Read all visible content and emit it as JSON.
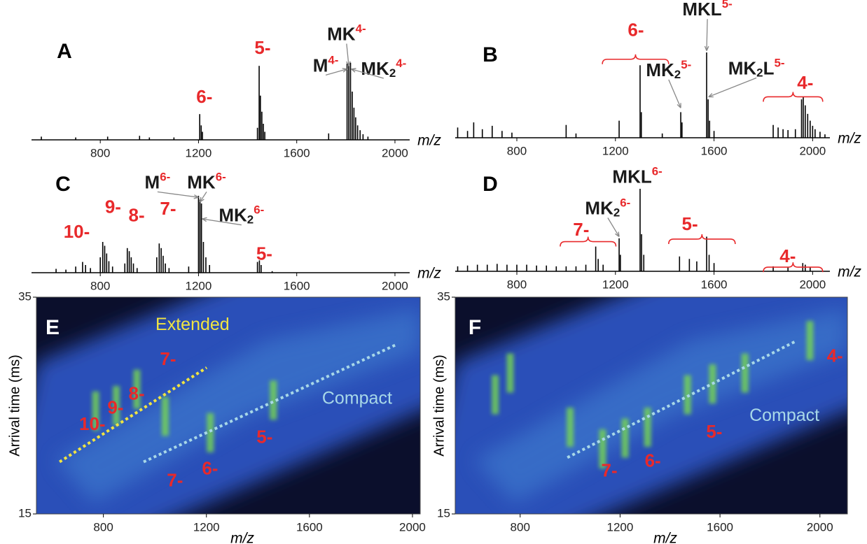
{
  "chart_data": [
    {
      "type": "bar",
      "title": "A",
      "color": "#000000",
      "charge_color": "#e8292b",
      "label_color": "#1a1a1a",
      "xlabel": "m/z",
      "xlim": [
        520,
        2060
      ],
      "ylim": [
        0,
        100
      ],
      "xticks": [
        800,
        1200,
        1600,
        2000
      ],
      "x": [
        560,
        700,
        830,
        960,
        1000,
        1100,
        1205,
        1211,
        1216,
        1440,
        1447,
        1452,
        1458,
        1464,
        1470,
        1730,
        1805,
        1812,
        1819,
        1826,
        1833,
        1840,
        1848,
        1858,
        1870,
        1890
      ],
      "values": [
        4,
        3,
        4,
        5,
        3,
        3,
        32,
        18,
        10,
        15,
        92,
        55,
        35,
        20,
        10,
        8,
        95,
        92,
        96,
        60,
        40,
        28,
        18,
        12,
        7,
        4
      ],
      "annotations": [
        {
          "text": "6-",
          "x": 1224,
          "y": 52
        },
        {
          "text": "5-",
          "x": 1461,
          "y": 113
        },
        {
          "text": "M",
          "sup": "4-",
          "x": 1718,
          "y": 91,
          "arrow": [
            1805,
            88
          ]
        },
        {
          "text": "MK",
          "sup": "4-",
          "x": 1803,
          "y": 130,
          "arrow": [
            1812,
            92
          ]
        },
        {
          "text": "MK",
          "sub": "2",
          "sup": "4-",
          "x": 1954,
          "y": 87,
          "arrow": [
            1822,
            88
          ]
        }
      ]
    },
    {
      "type": "bar",
      "title": "B",
      "color": "#000000",
      "charge_color": "#e8292b",
      "label_color": "#1a1a1a",
      "xlabel": "m/z",
      "xlim": [
        550,
        2070
      ],
      "ylim": [
        0,
        100
      ],
      "xticks": [
        800,
        1200,
        1600,
        2000
      ],
      "x": [
        560,
        600,
        625,
        660,
        700,
        740,
        780,
        1000,
        1040,
        1215,
        1300,
        1305,
        1390,
        1465,
        1470,
        1570,
        1576,
        1582,
        1600,
        1840,
        1860,
        1880,
        1900,
        1930,
        1955,
        1962,
        1970,
        1980,
        1990,
        2000,
        2010,
        2030,
        2050
      ],
      "values": [
        12,
        8,
        18,
        10,
        14,
        8,
        6,
        15,
        5,
        20,
        85,
        30,
        5,
        30,
        18,
        100,
        45,
        20,
        8,
        15,
        12,
        10,
        9,
        10,
        45,
        48,
        38,
        28,
        20,
        14,
        10,
        7,
        4
      ],
      "annotations": [
        {
          "text": "6-",
          "x": 1283,
          "y": 125
        },
        {
          "text": "MKL",
          "sup": "5-",
          "x": 1573,
          "y": 149,
          "arrow": [
            1570,
            102
          ]
        },
        {
          "text": "MK",
          "sub": "2",
          "sup": "5-",
          "x": 1416,
          "y": 78,
          "arrow": [
            1465,
            35
          ]
        },
        {
          "text": "MK",
          "sub": "2",
          "text2": "L",
          "sup": "5-",
          "x": 1772,
          "y": 80,
          "arrow": [
            1578,
            48
          ]
        },
        {
          "text": "4-",
          "x": 1970,
          "y": 63
        }
      ],
      "braces": [
        {
          "x": [
            1147,
            1416
          ],
          "y": 92
        },
        {
          "x": [
            1800,
            2041
          ],
          "y": 48
        }
      ]
    },
    {
      "type": "bar",
      "title": "C",
      "color": "#000000",
      "charge_color": "#e8292b",
      "label_color": "#1a1a1a",
      "xlabel": "m/z",
      "xlim": [
        520,
        2060
      ],
      "ylim": [
        0,
        100
      ],
      "xticks": [
        800,
        1200,
        1600,
        2000
      ],
      "x": [
        620,
        660,
        700,
        728,
        740,
        760,
        800,
        810,
        818,
        826,
        835,
        850,
        900,
        910,
        918,
        926,
        935,
        950,
        1030,
        1040,
        1048,
        1056,
        1065,
        1080,
        1160,
        1200,
        1206,
        1212,
        1220,
        1230,
        1245,
        1440,
        1448,
        1455,
        1500
      ],
      "values": [
        5,
        4,
        8,
        14,
        10,
        6,
        20,
        40,
        35,
        25,
        15,
        8,
        12,
        32,
        28,
        20,
        12,
        6,
        20,
        38,
        32,
        22,
        12,
        6,
        8,
        100,
        95,
        90,
        40,
        20,
        10,
        14,
        16,
        10,
        2
      ],
      "annotations": [
        {
          "text": "10-",
          "x": 704,
          "y": 52
        },
        {
          "text": "9-",
          "x": 852,
          "y": 84
        },
        {
          "text": "8-",
          "x": 948,
          "y": 73
        },
        {
          "text": "7-",
          "x": 1076,
          "y": 82
        },
        {
          "text": "M",
          "sup": "6-",
          "x": 1033,
          "y": 116,
          "arrow": [
            1200,
            98
          ]
        },
        {
          "text": "MK",
          "sup": "6-",
          "x": 1233,
          "y": 116,
          "arrow": [
            1206,
            92
          ]
        },
        {
          "text": "MK",
          "sub": "2",
          "sup": "6-",
          "x": 1375,
          "y": 73,
          "arrow": [
            1215,
            70
          ]
        },
        {
          "text": "5-",
          "x": 1468,
          "y": 23
        }
      ]
    },
    {
      "type": "bar",
      "title": "D",
      "color": "#000000",
      "charge_color": "#e8292b",
      "label_color": "#1a1a1a",
      "xlabel": "m/z",
      "xlim": [
        550,
        2070
      ],
      "ylim": [
        0,
        100
      ],
      "xticks": [
        800,
        1200,
        1600,
        2000
      ],
      "x": [
        560,
        600,
        640,
        680,
        720,
        760,
        800,
        840,
        880,
        920,
        960,
        1000,
        1040,
        1080,
        1120,
        1130,
        1150,
        1215,
        1220,
        1300,
        1306,
        1315,
        1460,
        1500,
        1530,
        1570,
        1580,
        1600,
        1840,
        1900,
        1960,
        1970,
        1990
      ],
      "values": [
        6,
        7,
        8,
        8,
        9,
        8,
        8,
        8,
        7,
        7,
        6,
        6,
        6,
        8,
        30,
        15,
        8,
        40,
        20,
        100,
        45,
        20,
        18,
        15,
        12,
        42,
        20,
        10,
        6,
        5,
        10,
        8,
        5
      ],
      "annotations": [
        {
          "text": "MKL",
          "sup": "6-",
          "x": 1289,
          "y": 113
        },
        {
          "text": "MK",
          "sub": "2",
          "sup": "6-",
          "x": 1169,
          "y": 75,
          "arrow": [
            1215,
            42
          ]
        },
        {
          "text": "7-",
          "x": 1061,
          "y": 49
        },
        {
          "text": "5-",
          "x": 1502,
          "y": 56
        },
        {
          "text": "4-",
          "x": 1899,
          "y": 17
        }
      ],
      "braces": [
        {
          "x": [
            976,
            1202
          ],
          "y": 36
        },
        {
          "x": [
            1416,
            1686
          ],
          "y": 39
        },
        {
          "x": [
            1800,
            2041
          ],
          "y": 5
        }
      ]
    },
    {
      "type": "heatmap",
      "title": "E",
      "charge_color": "#e8292b",
      "streak_color": "#7de04a",
      "xlabel": "m/z",
      "ylabel": "Arrival time (ms)",
      "xlim": [
        540,
        2030
      ],
      "ylim": [
        15,
        35
      ],
      "xticks": [
        800,
        1200,
        1600,
        2000
      ],
      "yticks": [
        15,
        35
      ],
      "streaks": {
        "x": [
          770,
          850,
          930,
          1040,
          1215,
          1460
        ],
        "y": [
          24.5,
          25,
          26.5,
          24,
          22.5,
          25.5
        ]
      },
      "lines": [
        {
          "name": "Extended",
          "color": "#f0e442",
          "x": [
            630,
            1201
          ],
          "y": [
            19.8,
            28.5
          ],
          "label_x": 1146,
          "label_y": 32.4
        },
        {
          "name": "Compact",
          "color": "#a8d8e8",
          "x": [
            956,
            1935
          ],
          "y": [
            19.8,
            30.6
          ],
          "label_x": 1785,
          "label_y": 25.6
        }
      ],
      "annotations": [
        {
          "text": "10-",
          "x": 757,
          "y": 23.2
        },
        {
          "text": "9-",
          "x": 847,
          "y": 24.7
        },
        {
          "text": "8-",
          "x": 929,
          "y": 26.0
        },
        {
          "text": "7-",
          "x": 1051,
          "y": 29.2
        },
        {
          "text": "7-",
          "x": 1078,
          "y": 18.0
        },
        {
          "text": "6-",
          "x": 1214,
          "y": 19.1
        },
        {
          "text": "5-",
          "x": 1426,
          "y": 22.0
        }
      ]
    },
    {
      "type": "heatmap",
      "title": "F",
      "charge_color": "#e8292b",
      "streak_color": "#7de04a",
      "xlabel": "m/z",
      "ylabel": "Arrival time (ms)",
      "xlim": [
        540,
        2110
      ],
      "ylim": [
        15,
        35
      ],
      "xticks": [
        800,
        1200,
        1600,
        2000
      ],
      "yticks": [
        15,
        35
      ],
      "streaks": {
        "x": [
          700,
          760,
          1000,
          1130,
          1220,
          1310,
          1470,
          1570,
          1700,
          1960
        ],
        "y": [
          26,
          28,
          23,
          21,
          22,
          23,
          26,
          27,
          28,
          31
        ]
      },
      "lines": [
        {
          "name": "Compact",
          "color": "#a8d8e8",
          "x": [
            989,
            1900
          ],
          "y": [
            20.2,
            30.9
          ],
          "label_x": 1858,
          "label_y": 24.0
        }
      ],
      "annotations": [
        {
          "text": "4-",
          "x": 2060,
          "y": 29.5
        },
        {
          "text": "5-",
          "x": 1577,
          "y": 22.5
        },
        {
          "text": "6-",
          "x": 1331,
          "y": 19.8
        },
        {
          "text": "7-",
          "x": 1157,
          "y": 18.9
        }
      ]
    }
  ]
}
